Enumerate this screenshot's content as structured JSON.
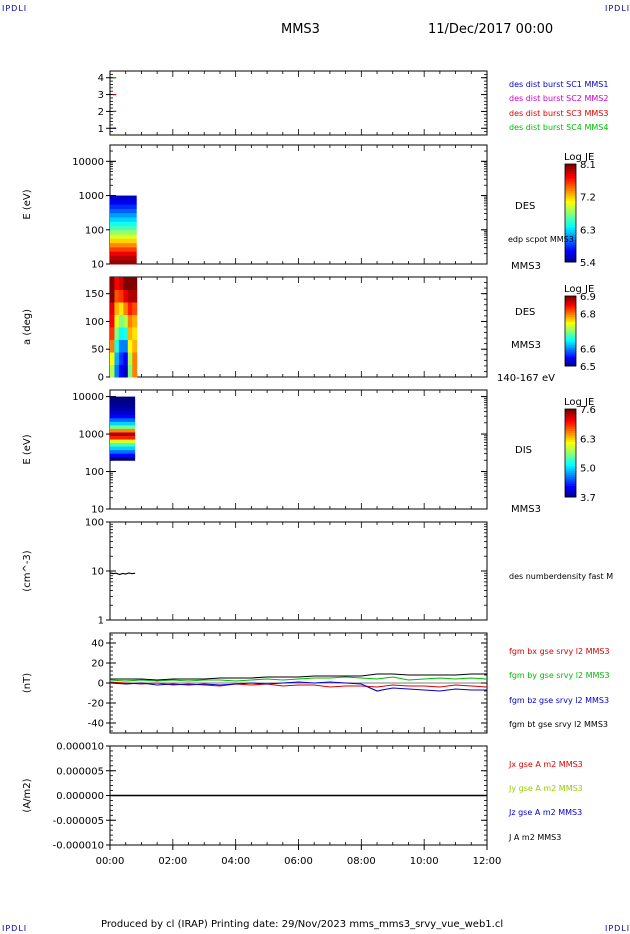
{
  "header": {
    "corner_left": "IPDLI",
    "corner_right": "IPDLI",
    "spacecraft": "MMS3",
    "date": "11/Dec/2017 00:00"
  },
  "footer": {
    "text": "Produced by cl (IRAP)   Printing date: 29/Nov/2023   mms_mms3_srvy_vue_web1.cl",
    "corner_left": "IPDLI",
    "corner_right": "IPDLI"
  },
  "time_axis": {
    "ticks": [
      "00:00",
      "02:00",
      "04:00",
      "06:00",
      "08:00",
      "10:00",
      "12:00"
    ],
    "range_hours": [
      0,
      12
    ]
  },
  "chart_data": [
    {
      "type": "scatter",
      "id": "burst",
      "yticks": [
        "1",
        "2",
        "3",
        "4"
      ],
      "ylim": [
        0.6,
        4.4
      ],
      "series": [
        {
          "name": "des dist burst SC1 MMS1",
          "color": "#0000cc",
          "y": 1,
          "x": [
            0.1,
            0.2
          ]
        },
        {
          "name": "des dist burst SC2 MMS2",
          "color": "#cc00cc",
          "y": 2,
          "x": [
            0.1,
            0.2
          ]
        },
        {
          "name": "des dist burst SC3 MMS3",
          "color": "#dd0000",
          "y": 3,
          "x": [
            0.1,
            0.2
          ]
        },
        {
          "name": "des dist burst SC4 MMS4",
          "color": "#00bb00",
          "y": 4,
          "x": [
            0.1,
            0.2
          ]
        }
      ]
    },
    {
      "type": "heatmap",
      "id": "des_energy",
      "ylabel": "E (eV)",
      "ytick_labels": [
        "10",
        "100",
        "1000",
        "10000"
      ],
      "ylim": [
        10,
        30000
      ],
      "yscale": "log",
      "x_extent_hours": [
        0.0,
        0.85
      ],
      "y_extent": [
        10,
        1000
      ],
      "rows": 16,
      "row_values": [
        8.05,
        7.95,
        7.8,
        7.6,
        7.4,
        7.2,
        7.0,
        6.8,
        6.6,
        6.45,
        6.3,
        6.15,
        6.0,
        5.85,
        5.7,
        5.6
      ],
      "side_labels": [
        "DES",
        "edp scpot MMS3",
        "MMS3"
      ],
      "colorbar": {
        "title": "Log JE",
        "labels": [
          "8.1",
          "7.2",
          "6.3",
          "5.4"
        ],
        "min": 5.4,
        "max": 8.1
      }
    },
    {
      "type": "heatmap",
      "id": "des_pitch",
      "ylabel": "a (deg)",
      "ytick_labels": [
        "0",
        "50",
        "100",
        "150"
      ],
      "ylim": [
        0,
        180
      ],
      "x_extent_hours": [
        0.0,
        0.85
      ],
      "bins": 8,
      "columns": [
        [
          6.72,
          6.75,
          6.8,
          6.83,
          6.85,
          6.86,
          6.9,
          6.92
        ],
        [
          6.6,
          6.62,
          6.66,
          6.7,
          6.74,
          6.78,
          6.82,
          6.85
        ],
        [
          6.55,
          6.57,
          6.6,
          6.65,
          6.7,
          6.76,
          6.83,
          6.87
        ],
        [
          6.52,
          6.55,
          6.6,
          6.66,
          6.72,
          6.8,
          6.86,
          6.9
        ],
        [
          6.7,
          6.72,
          6.75,
          6.78,
          6.8,
          6.84,
          6.88,
          6.9
        ],
        [
          6.8,
          6.8,
          6.78,
          6.76,
          6.78,
          6.82,
          6.88,
          6.92
        ]
      ],
      "side_labels": [
        "DES",
        "MMS3",
        "140-167 eV"
      ],
      "colorbar": {
        "title": "Log JE",
        "labels": [
          "6.9",
          "6.8",
          "6.6",
          "6.5"
        ],
        "min": 6.5,
        "max": 6.9
      }
    },
    {
      "type": "heatmap",
      "id": "dis_energy",
      "ylabel": "E (eV)",
      "ytick_labels": [
        "10",
        "100",
        "1000",
        "10000"
      ],
      "ylim": [
        10,
        15000
      ],
      "yscale": "log",
      "x_extent_hours": [
        0.0,
        0.8
      ],
      "y_extent": [
        200,
        10000
      ],
      "rows": 18,
      "row_values": [
        3.7,
        4.2,
        4.6,
        5.0,
        5.4,
        6.0,
        7.0,
        7.4,
        6.6,
        5.6,
        5.0,
        4.6,
        4.2,
        4.0,
        3.9,
        3.8,
        3.75,
        3.7
      ],
      "side_labels": [
        "DIS",
        "MMS3"
      ],
      "colorbar": {
        "title": "Log JE",
        "labels": [
          "7.6",
          "6.3",
          "5.0",
          "3.7"
        ],
        "min": 3.7,
        "max": 7.6
      }
    },
    {
      "type": "line",
      "id": "density",
      "ylabel": "(cm^-3)",
      "ytick_labels": [
        "1",
        "10",
        "100"
      ],
      "ylim": [
        1,
        100
      ],
      "yscale": "log",
      "series": [
        {
          "name": "des numberdensity fast M",
          "color": "#000000",
          "x": [
            0.0,
            0.1,
            0.2,
            0.3,
            0.4,
            0.5,
            0.6,
            0.7,
            0.8
          ],
          "y": [
            9.2,
            8.8,
            9.0,
            8.5,
            8.9,
            8.7,
            9.1,
            8.8,
            9.0
          ]
        }
      ]
    },
    {
      "type": "line",
      "id": "fgm",
      "ylabel": "(nT)",
      "ytick_labels": [
        "-40",
        "-20",
        "0",
        "20",
        "40"
      ],
      "ylim": [
        -50,
        50
      ],
      "x": [
        0,
        0.5,
        1,
        1.5,
        2,
        2.5,
        3,
        3.5,
        4,
        4.5,
        5,
        5.5,
        6,
        6.5,
        7,
        7.5,
        8,
        8.5,
        9,
        9.5,
        10,
        10.5,
        11,
        11.5,
        12
      ],
      "series": [
        {
          "name": "fgm bx gse srvy l2 MMS3",
          "color": "#dd0000",
          "y": [
            1,
            0,
            -1,
            0,
            -2,
            -1,
            -2,
            -3,
            -1,
            -2,
            -1,
            -3,
            -2,
            -2,
            -4,
            -3,
            -3,
            -4,
            -2,
            -3,
            -3,
            -4,
            -2,
            -3,
            -4
          ]
        },
        {
          "name": "fgm by gse srvy l2 MMS3",
          "color": "#00bb00",
          "y": [
            3,
            2,
            3,
            2,
            3,
            2,
            3,
            3,
            2,
            3,
            4,
            3,
            4,
            5,
            5,
            6,
            5,
            4,
            6,
            3,
            4,
            5,
            4,
            5,
            4
          ]
        },
        {
          "name": "fgm bz gse srvy l2 MMS3",
          "color": "#0000cc",
          "y": [
            0,
            -1,
            0,
            -2,
            -1,
            -2,
            -1,
            -2,
            -1,
            0,
            -1,
            0,
            1,
            0,
            1,
            0,
            -1,
            -8,
            -5,
            -6,
            -7,
            -8,
            -6,
            -7,
            -7
          ]
        },
        {
          "name": "fgm bt gse srvy l2 MMS3",
          "color": "#000000",
          "y": [
            4,
            4,
            4,
            3,
            4,
            4,
            4,
            5,
            5,
            5,
            6,
            6,
            6,
            7,
            7,
            7,
            7,
            9,
            9,
            8,
            8,
            8,
            8,
            9,
            9
          ]
        }
      ]
    },
    {
      "type": "line",
      "id": "current",
      "ylabel": "(A/m2)",
      "ytick_labels": [
        "-0.000010",
        "-0.000005",
        "0.000000",
        "0.000005",
        "0.000010"
      ],
      "ylim": [
        -1e-05,
        1e-05
      ],
      "series": [
        {
          "name": "Jx gse A m2 MMS3",
          "color": "#dd0000",
          "x": [
            0,
            12
          ],
          "y": [
            0,
            0
          ]
        },
        {
          "name": "Jy gse A m2 MMS3",
          "color": "#99cc00",
          "x": [
            0,
            12
          ],
          "y": [
            0,
            0
          ]
        },
        {
          "name": "Jz gse A m2 MMS3",
          "color": "#0000cc",
          "x": [
            0,
            12
          ],
          "y": [
            0,
            0
          ]
        },
        {
          "name": "J A m2 MMS3",
          "color": "#000000",
          "x": [
            0,
            12
          ],
          "y": [
            0,
            0
          ]
        }
      ]
    }
  ]
}
